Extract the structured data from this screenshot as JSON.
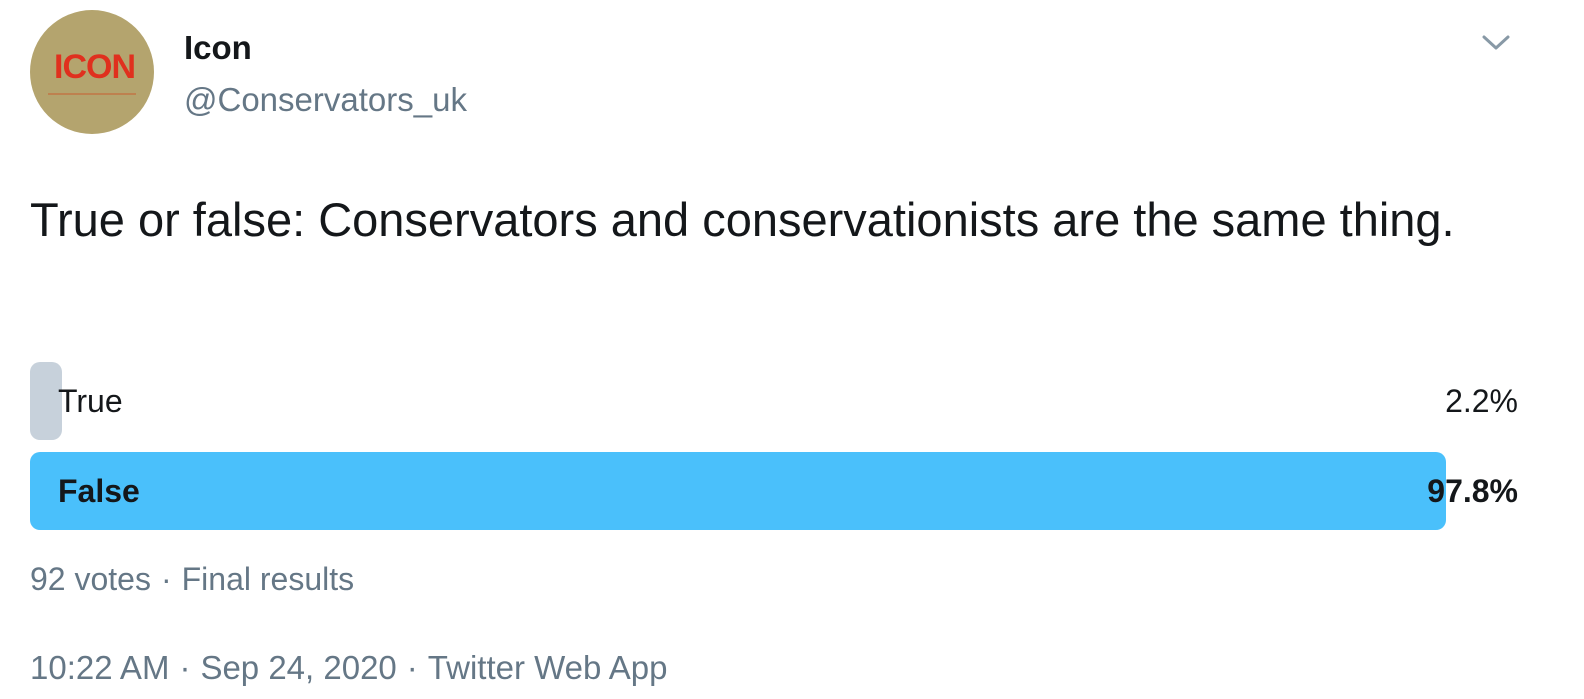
{
  "author": {
    "name": "Icon",
    "handle": "@Conservators_uk",
    "avatar_logo_text": "ICON",
    "avatar_bg": "#b4a46e",
    "avatar_logo_color": "#e0301e"
  },
  "menu_icon": "chevron-down-icon",
  "tweet": {
    "text": "True or false: Conservators and conservationists are the same thing."
  },
  "poll": {
    "options": [
      {
        "label": "True",
        "percent_text": "2.2%",
        "percent": 2.2,
        "winner": false
      },
      {
        "label": "False",
        "percent_text": "97.8%",
        "percent": 97.8,
        "winner": true
      }
    ],
    "votes_text": "92 votes",
    "separator": "·",
    "status_text": "Final results",
    "colors": {
      "winner": "#4ac0fb",
      "other": "#c7d1db"
    }
  },
  "footer": {
    "time": "10:22 AM",
    "date": "Sep 24, 2020",
    "source": "Twitter Web App",
    "separator": "·"
  }
}
